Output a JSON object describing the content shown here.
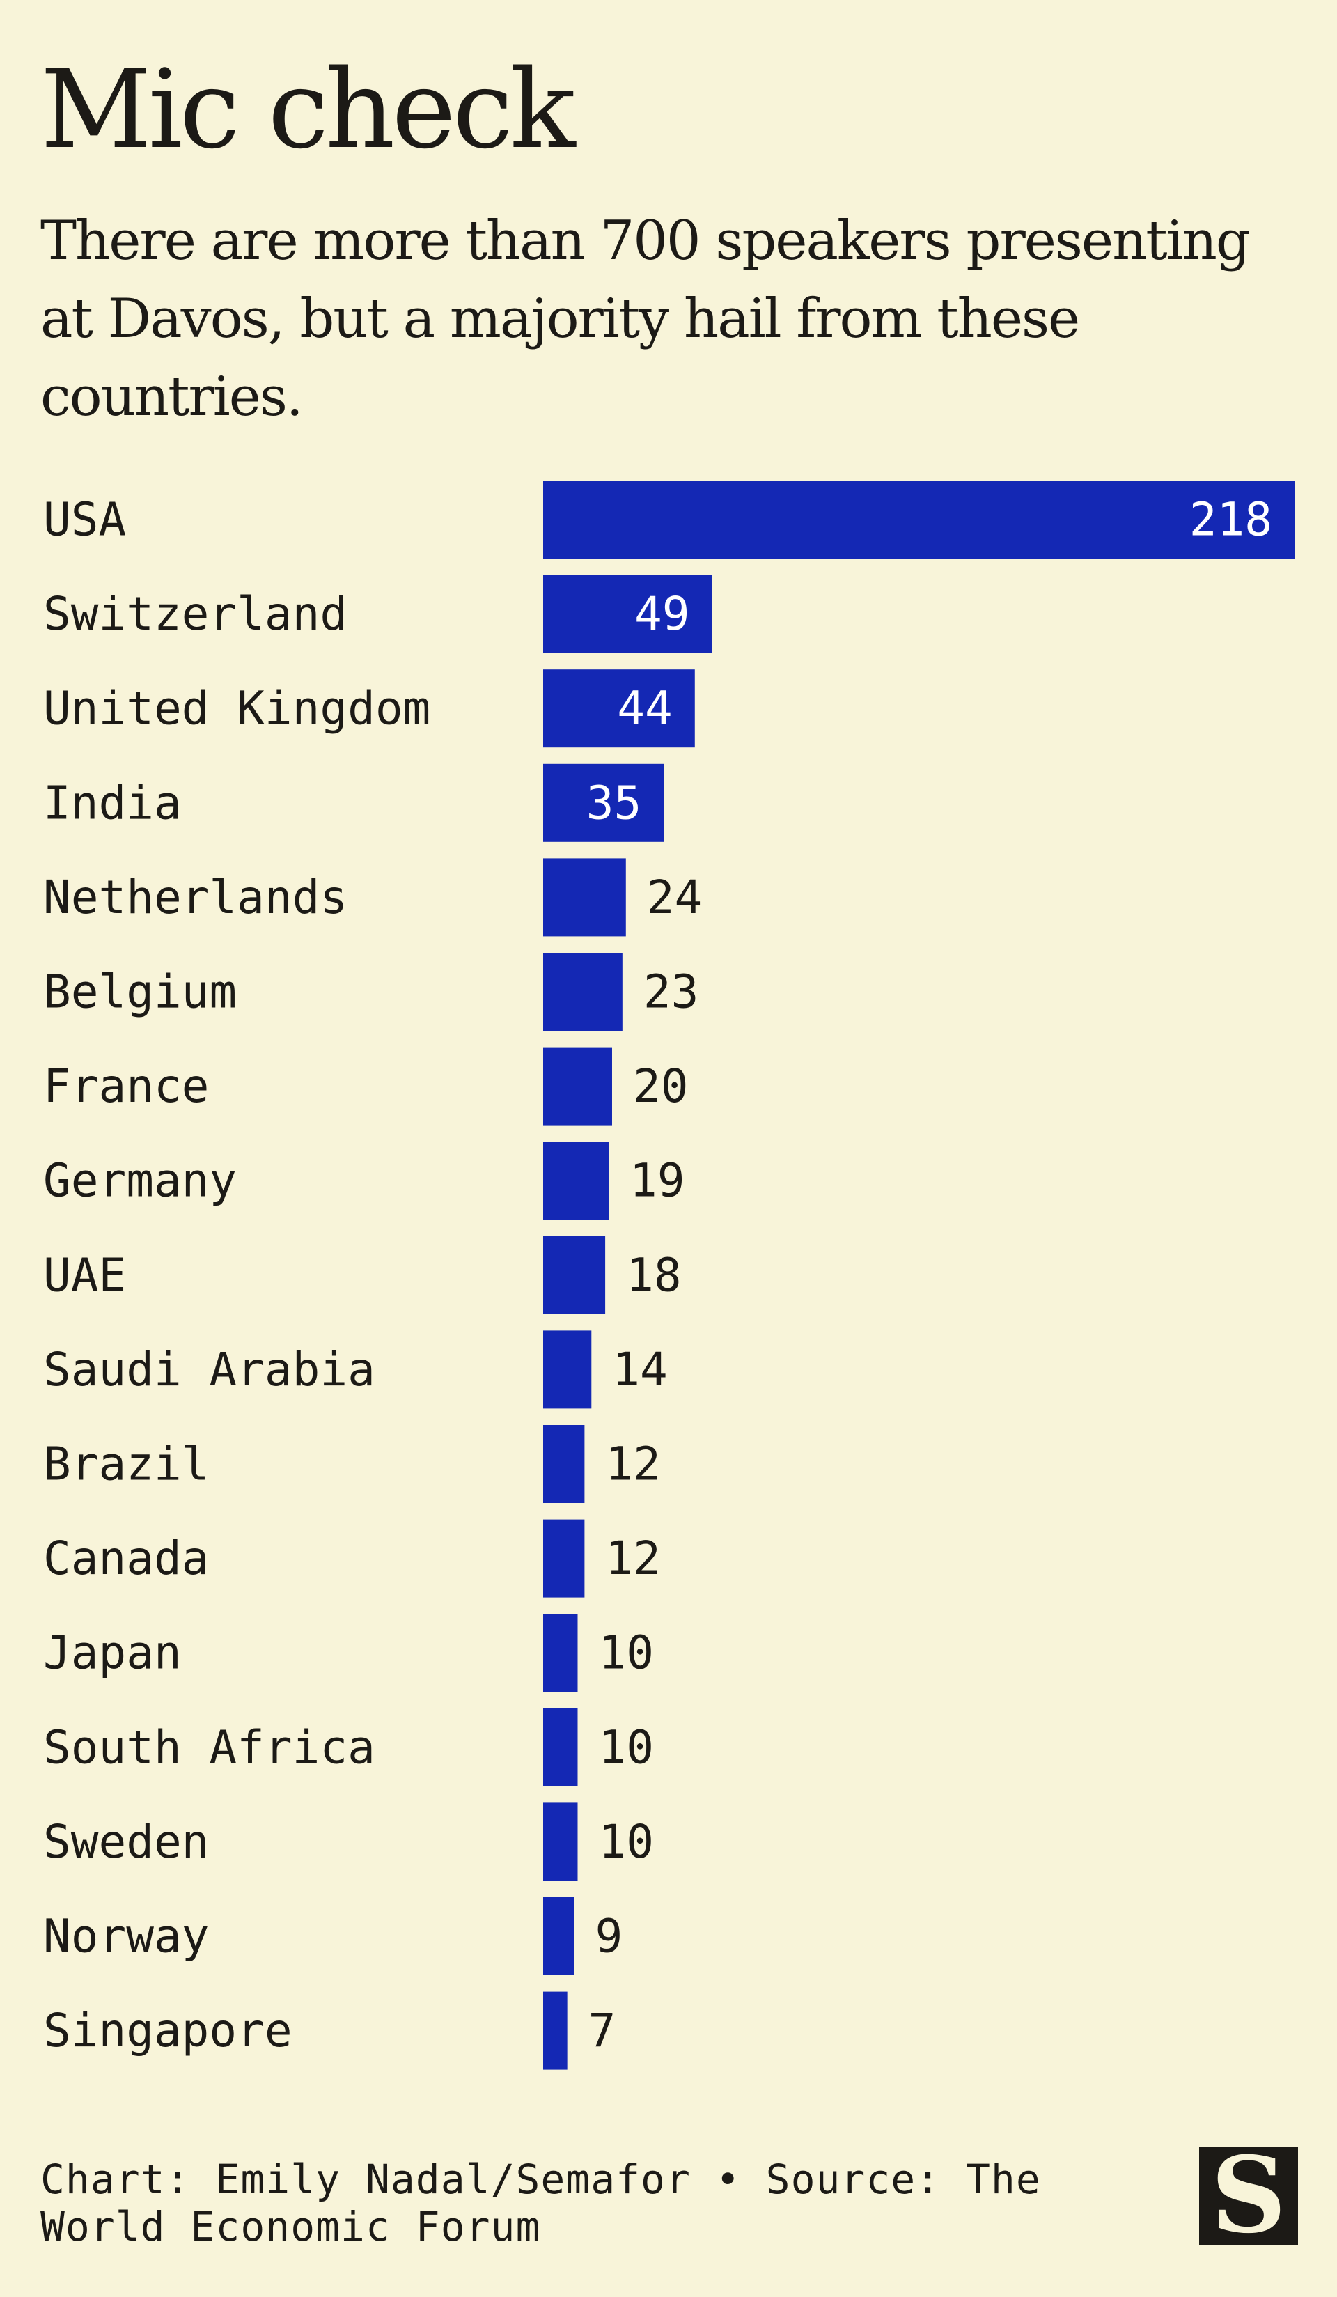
{
  "title": "Mic check",
  "subtitle": "There are more than 700 speakers presenting at Davos, but a majority hail from these countries.",
  "footer": {
    "credit": "Chart: Emily Nadal/Semafor • Source: The World Economic Forum"
  },
  "logo": {
    "icon": "semafor-s-logo",
    "letter": "S"
  },
  "colors": {
    "background": "#f8f4d9",
    "bar": "#1428b4",
    "text": "#1c1a16",
    "inside_label": "#ffffff"
  },
  "chart_data": {
    "type": "bar",
    "orientation": "horizontal",
    "categories": [
      "USA",
      "Switzerland",
      "United Kingdom",
      "India",
      "Netherlands",
      "Belgium",
      "France",
      "Germany",
      "UAE",
      "Saudi Arabia",
      "Brazil",
      "Canada",
      "Japan",
      "South Africa",
      "Sweden",
      "Norway",
      "Singapore"
    ],
    "values": [
      218,
      49,
      44,
      35,
      24,
      23,
      20,
      19,
      18,
      14,
      12,
      12,
      10,
      10,
      10,
      9,
      7
    ],
    "title": "Mic check",
    "xlabel": "",
    "ylabel": "",
    "xlim": [
      0,
      218
    ],
    "grid": false,
    "data_labels": true
  }
}
